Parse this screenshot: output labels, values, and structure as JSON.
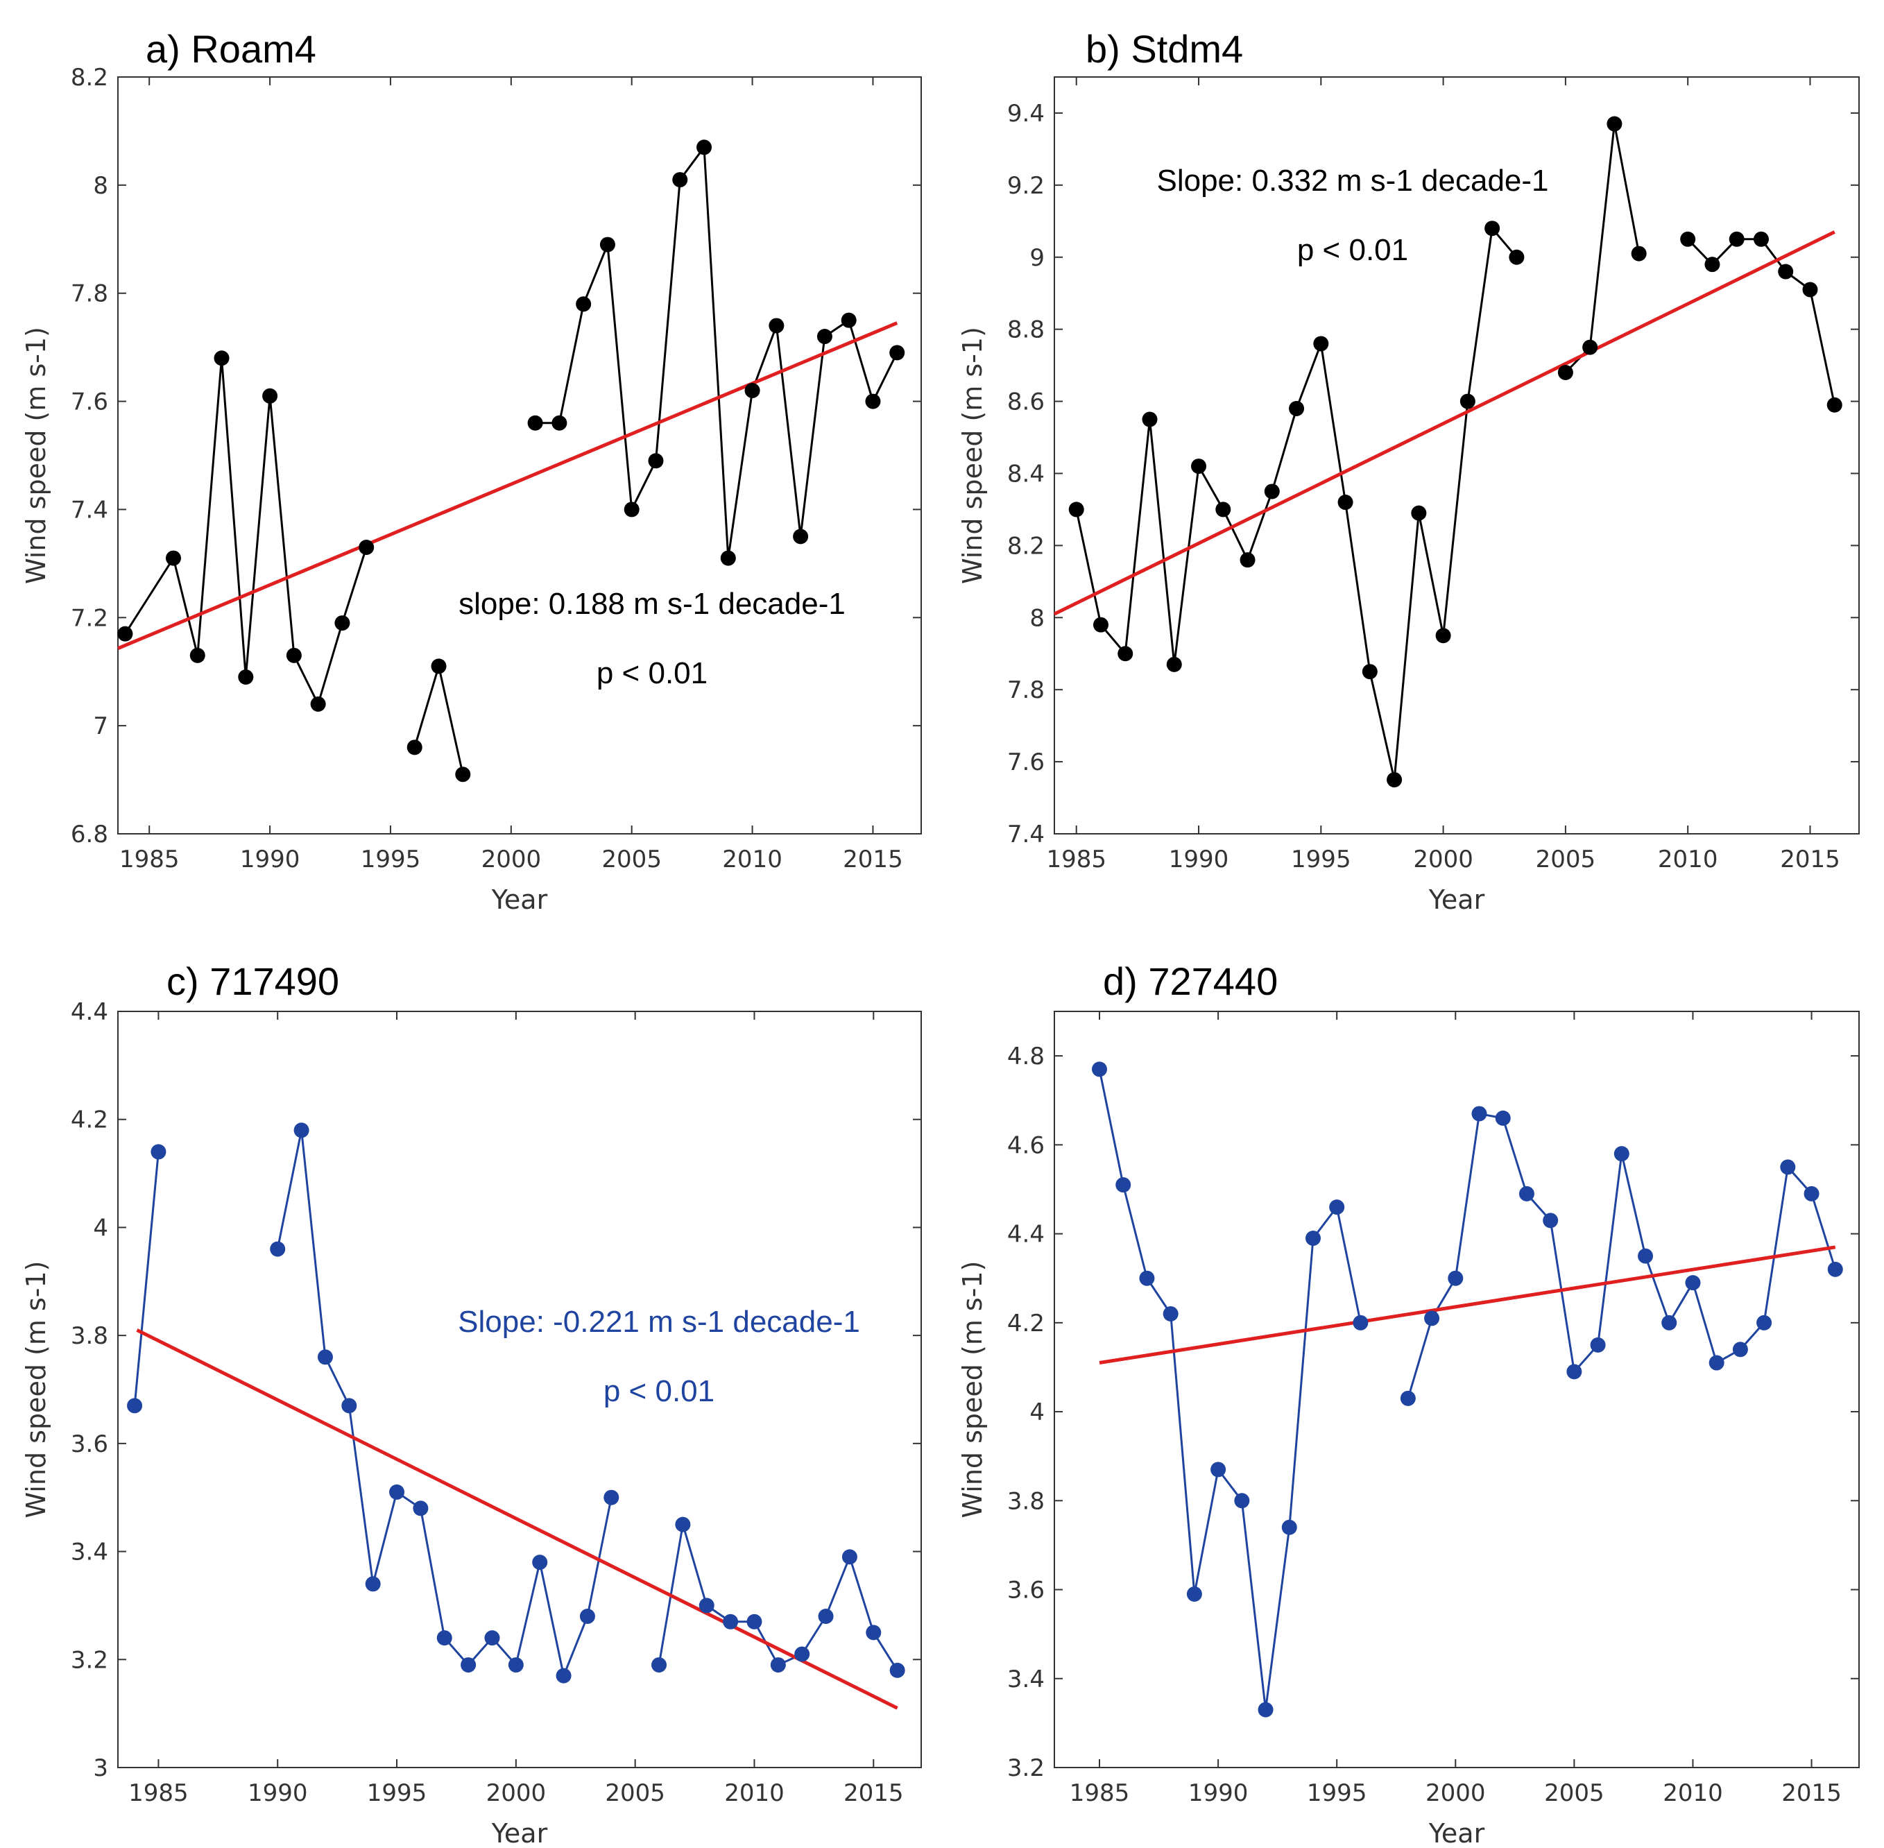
{
  "colors": {
    "black_series": "#000000",
    "blue_series": "#1f44a0",
    "trend": "#e02020",
    "axis": "#333333"
  },
  "chart_data": [
    {
      "type": "line",
      "title": "a) Roam4",
      "xlabel": "Year",
      "ylabel": "Wind speed (m s-1)",
      "xlim": [
        1983.7,
        2017
      ],
      "ylim": [
        6.8,
        8.2
      ],
      "xticks": [
        1985,
        1990,
        1995,
        2000,
        2005,
        2010,
        2015
      ],
      "yticks": [
        6.8,
        7,
        7.2,
        7.4,
        7.6,
        7.8,
        8,
        8.2
      ],
      "ytick_labels": [
        "6.8",
        "7",
        "7.2",
        "7.4",
        "7.6",
        "7.8",
        "8",
        "8.2"
      ],
      "series_color": "#000000",
      "x": [
        1984,
        1986,
        1987,
        1988,
        1989,
        1990,
        1991,
        1992,
        1993,
        1994,
        1996,
        1997,
        1998,
        2001,
        2002,
        2003,
        2004,
        2005,
        2006,
        2007,
        2008,
        2009,
        2010,
        2011,
        2012,
        2013,
        2014,
        2015,
        2016
      ],
      "y": [
        7.17,
        7.31,
        7.13,
        7.68,
        7.09,
        7.61,
        7.13,
        7.04,
        7.19,
        7.33,
        6.96,
        7.11,
        6.91,
        7.56,
        7.56,
        7.78,
        7.89,
        7.4,
        7.49,
        8.01,
        8.07,
        7.31,
        7.62,
        7.74,
        7.35,
        7.72,
        7.75,
        7.6,
        7.69
      ],
      "segments": [
        [
          0,
          9
        ],
        [
          10,
          12
        ],
        [
          13,
          28
        ]
      ],
      "trend": {
        "x": [
          1983.7,
          2016
        ],
        "y": [
          7.143,
          7.745
        ]
      },
      "annotations": [
        "slope: 0.188 m s-1 decade-1",
        "p < 0.01"
      ],
      "annotation_color": "#000000"
    },
    {
      "type": "line",
      "title": "b) Stdm4",
      "xlabel": "Year",
      "ylabel": "Wind speed (m s-1)",
      "xlim": [
        1984.1,
        2017
      ],
      "ylim": [
        7.4,
        9.5
      ],
      "xticks": [
        1985,
        1990,
        1995,
        2000,
        2005,
        2010,
        2015
      ],
      "yticks": [
        7.4,
        7.6,
        7.8,
        8,
        8.2,
        8.4,
        8.6,
        8.8,
        9,
        9.2,
        9.4
      ],
      "ytick_labels": [
        "7.4",
        "7.6",
        "7.8",
        "8",
        "8.2",
        "8.4",
        "8.6",
        "8.8",
        "9",
        "9.2",
        "9.4"
      ],
      "series_color": "#000000",
      "x": [
        1985,
        1986,
        1987,
        1988,
        1989,
        1990,
        1991,
        1992,
        1993,
        1994,
        1995,
        1996,
        1997,
        1998,
        1999,
        2000,
        2001,
        2002,
        2003,
        2005,
        2006,
        2007,
        2008,
        2010,
        2011,
        2012,
        2013,
        2014,
        2015,
        2016
      ],
      "y": [
        8.3,
        7.98,
        7.9,
        8.55,
        7.87,
        8.42,
        8.3,
        8.16,
        8.35,
        8.58,
        8.76,
        8.32,
        7.85,
        7.55,
        8.29,
        7.95,
        8.6,
        9.08,
        9.0,
        8.68,
        8.75,
        9.37,
        9.01,
        9.05,
        8.98,
        9.05,
        9.05,
        8.96,
        8.91,
        8.59
      ],
      "segments": [
        [
          0,
          18
        ],
        [
          19,
          22
        ],
        [
          23,
          29
        ]
      ],
      "trend": {
        "x": [
          1984.1,
          2016
        ],
        "y": [
          8.01,
          9.07
        ]
      },
      "annotations": [
        "Slope: 0.332 m s-1 decade-1",
        "p < 0.01"
      ],
      "annotation_color": "#000000"
    },
    {
      "type": "line",
      "title": "c) 717490",
      "xlabel": "Year",
      "ylabel": "Wind speed (m s-1)",
      "xlim": [
        1983.3,
        2017
      ],
      "ylim": [
        3.0,
        4.4
      ],
      "xticks": [
        1985,
        1990,
        1995,
        2000,
        2005,
        2010,
        2015
      ],
      "yticks": [
        3,
        3.2,
        3.4,
        3.6,
        3.8,
        4,
        4.2,
        4.4
      ],
      "ytick_labels": [
        "3",
        "3.2",
        "3.4",
        "3.6",
        "3.8",
        "4",
        "4.2",
        "4.4"
      ],
      "series_color": "#1f44a0",
      "x": [
        1984,
        1985,
        1990,
        1991,
        1992,
        1993,
        1994,
        1995,
        1996,
        1997,
        1998,
        1999,
        2000,
        2001,
        2002,
        2003,
        2004,
        2006,
        2007,
        2008,
        2009,
        2010,
        2011,
        2012,
        2013,
        2014,
        2015,
        2016
      ],
      "y": [
        3.67,
        4.14,
        3.96,
        4.18,
        3.76,
        3.67,
        3.34,
        3.51,
        3.48,
        3.24,
        3.19,
        3.24,
        3.19,
        3.38,
        3.17,
        3.28,
        3.5,
        3.19,
        3.45,
        3.3,
        3.27,
        3.27,
        3.19,
        3.21,
        3.28,
        3.39,
        3.25,
        3.18
      ],
      "segments": [
        [
          0,
          1
        ],
        [
          2,
          16
        ],
        [
          17,
          27
        ]
      ],
      "trend": {
        "x": [
          1984.1,
          2016
        ],
        "y": [
          3.81,
          3.11
        ]
      },
      "annotations": [
        "Slope: -0.221 m s-1 decade-1",
        "p < 0.01"
      ],
      "annotation_color": "#1f44a0"
    },
    {
      "type": "line",
      "title": "d) 727440",
      "xlabel": "Year",
      "ylabel": "Wind speed (m s-1)",
      "xlim": [
        1983.1,
        2017
      ],
      "ylim": [
        3.2,
        4.9
      ],
      "xticks": [
        1985,
        1990,
        1995,
        2000,
        2005,
        2010,
        2015
      ],
      "yticks": [
        3.2,
        3.4,
        3.6,
        3.8,
        4,
        4.2,
        4.4,
        4.6,
        4.8
      ],
      "ytick_labels": [
        "3.2",
        "3.4",
        "3.6",
        "3.8",
        "4",
        "4.2",
        "4.4",
        "4.6",
        "4.8"
      ],
      "series_color": "#1f44a0",
      "x": [
        1985,
        1986,
        1987,
        1988,
        1989,
        1990,
        1991,
        1992,
        1993,
        1994,
        1995,
        1996,
        1998,
        1999,
        2000,
        2001,
        2002,
        2003,
        2004,
        2005,
        2006,
        2007,
        2008,
        2009,
        2010,
        2011,
        2012,
        2013,
        2014,
        2015,
        2016
      ],
      "y": [
        4.77,
        4.51,
        4.3,
        4.22,
        3.59,
        3.87,
        3.8,
        3.33,
        3.74,
        4.39,
        4.46,
        4.2,
        4.03,
        4.21,
        4.3,
        4.67,
        4.66,
        4.49,
        4.43,
        4.09,
        4.15,
        4.58,
        4.35,
        4.2,
        4.29,
        4.11,
        4.14,
        4.2,
        4.55,
        4.49,
        4.32
      ],
      "segments": [
        [
          0,
          11
        ],
        [
          12,
          30
        ]
      ],
      "trend": {
        "x": [
          1985,
          2016
        ],
        "y": [
          4.11,
          4.37
        ]
      },
      "annotations": [],
      "annotation_color": "#1f44a0"
    }
  ]
}
